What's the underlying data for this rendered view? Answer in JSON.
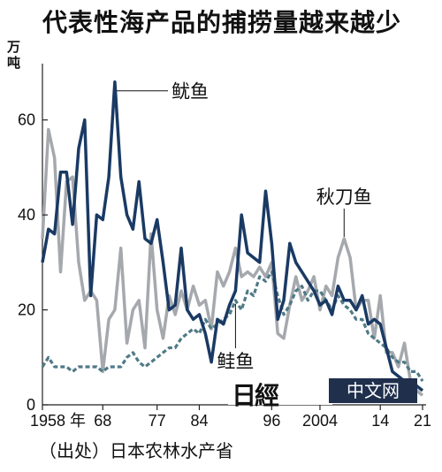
{
  "title": "代表性海产品的捕捞量越来越少",
  "unit_label": "万吨",
  "source": "（出处）日本农林水产省",
  "watermark": {
    "jp": "日經",
    "cn": "中文网"
  },
  "colors": {
    "squid": "#1a3a64",
    "saury": "#a5a8ad",
    "salmon": "#4f7a86"
  },
  "chart_data": {
    "type": "line",
    "xlim": [
      1958,
      2021
    ],
    "ylim": [
      0,
      70
    ],
    "grid": false,
    "yticks": [
      "0",
      "20",
      "40",
      "60"
    ],
    "ytick_values": [
      0,
      20,
      40,
      60
    ],
    "xticks": [
      "1958 年",
      "68",
      "77",
      "84",
      "96",
      "2004",
      "14",
      "21"
    ],
    "xtick_values": [
      1958,
      1968,
      1977,
      1984,
      1996,
      2004,
      2014,
      2021
    ],
    "annotations": [
      "鱿鱼",
      "秋刀鱼",
      "鲑鱼"
    ],
    "series": [
      {
        "name": "鱿鱼",
        "style": "solid-dark",
        "x": [
          1958,
          1959,
          1960,
          1961,
          1962,
          1963,
          1964,
          1965,
          1966,
          1967,
          1968,
          1969,
          1970,
          1971,
          1972,
          1973,
          1974,
          1975,
          1976,
          1977,
          1978,
          1979,
          1980,
          1981,
          1982,
          1983,
          1984,
          1985,
          1986,
          1987,
          1988,
          1989,
          1990,
          1991,
          1992,
          1993,
          1994,
          1995,
          1996,
          1997,
          1998,
          1999,
          2000,
          2001,
          2002,
          2003,
          2004,
          2005,
          2006,
          2007,
          2008,
          2009,
          2010,
          2011,
          2012,
          2013,
          2014,
          2015,
          2016,
          2017,
          2018,
          2019,
          2020,
          2021
        ],
        "values": [
          30,
          37,
          36,
          49,
          49,
          38,
          54,
          60,
          23,
          40,
          39,
          48,
          68,
          48,
          40,
          37,
          47,
          35,
          34,
          39,
          30,
          20,
          21,
          33,
          20,
          18,
          19,
          15,
          9,
          18,
          17,
          21,
          24,
          40,
          32,
          31,
          30,
          45,
          34,
          18,
          22,
          34,
          30,
          28,
          26,
          24,
          21,
          22,
          19,
          25,
          22,
          22,
          20,
          23,
          17,
          18,
          17,
          12,
          7,
          6,
          5,
          4,
          4,
          3
        ]
      },
      {
        "name": "秋刀鱼",
        "style": "solid-gray",
        "x": [
          1958,
          1959,
          1960,
          1961,
          1962,
          1963,
          1964,
          1965,
          1966,
          1967,
          1968,
          1969,
          1970,
          1971,
          1972,
          1973,
          1974,
          1975,
          1976,
          1977,
          1978,
          1979,
          1980,
          1981,
          1982,
          1983,
          1984,
          1985,
          1986,
          1987,
          1988,
          1989,
          1990,
          1991,
          1992,
          1993,
          1994,
          1995,
          1996,
          1997,
          1998,
          1999,
          2000,
          2001,
          2002,
          2003,
          2004,
          2005,
          2006,
          2007,
          2008,
          2009,
          2010,
          2011,
          2012,
          2013,
          2014,
          2015,
          2016,
          2017,
          2018,
          2019,
          2020,
          2021
        ],
        "values": [
          35,
          58,
          52,
          28,
          47,
          48,
          30,
          22,
          24,
          22,
          7,
          18,
          20,
          33,
          13,
          20,
          22,
          12,
          36,
          20,
          14,
          23,
          19,
          24,
          20,
          25,
          21,
          22,
          16,
          28,
          25,
          28,
          33,
          27,
          28,
          27,
          29,
          27,
          30,
          15,
          14,
          21,
          27,
          22,
          24,
          27,
          20,
          25,
          23,
          31,
          35,
          31,
          20,
          22,
          22,
          14,
          23,
          11,
          11,
          8,
          13,
          5,
          3,
          2
        ]
      },
      {
        "name": "鲑鱼",
        "style": "dashed",
        "x": [
          1958,
          1959,
          1960,
          1961,
          1962,
          1963,
          1964,
          1965,
          1966,
          1967,
          1968,
          1969,
          1970,
          1971,
          1972,
          1973,
          1974,
          1975,
          1976,
          1977,
          1978,
          1979,
          1980,
          1981,
          1982,
          1983,
          1984,
          1985,
          1986,
          1987,
          1988,
          1989,
          1990,
          1991,
          1992,
          1993,
          1994,
          1995,
          1996,
          1997,
          1998,
          1999,
          2000,
          2001,
          2002,
          2003,
          2004,
          2005,
          2006,
          2007,
          2008,
          2009,
          2010,
          2011,
          2012,
          2013,
          2014,
          2015,
          2016,
          2017,
          2018,
          2019,
          2020,
          2021
        ],
        "values": [
          8,
          10,
          8,
          8,
          8,
          7,
          8,
          8,
          8,
          8,
          7,
          8,
          8,
          8,
          10,
          11,
          9,
          8,
          9,
          10,
          11,
          12,
          12,
          14,
          15,
          16,
          15,
          18,
          16,
          17,
          18,
          19,
          22,
          20,
          24,
          23,
          27,
          26,
          28,
          23,
          19,
          21,
          24,
          25,
          22,
          24,
          24,
          22,
          20,
          23,
          21,
          20,
          18,
          18,
          15,
          14,
          13,
          12,
          10,
          9,
          9,
          7,
          7,
          5
        ]
      }
    ]
  }
}
